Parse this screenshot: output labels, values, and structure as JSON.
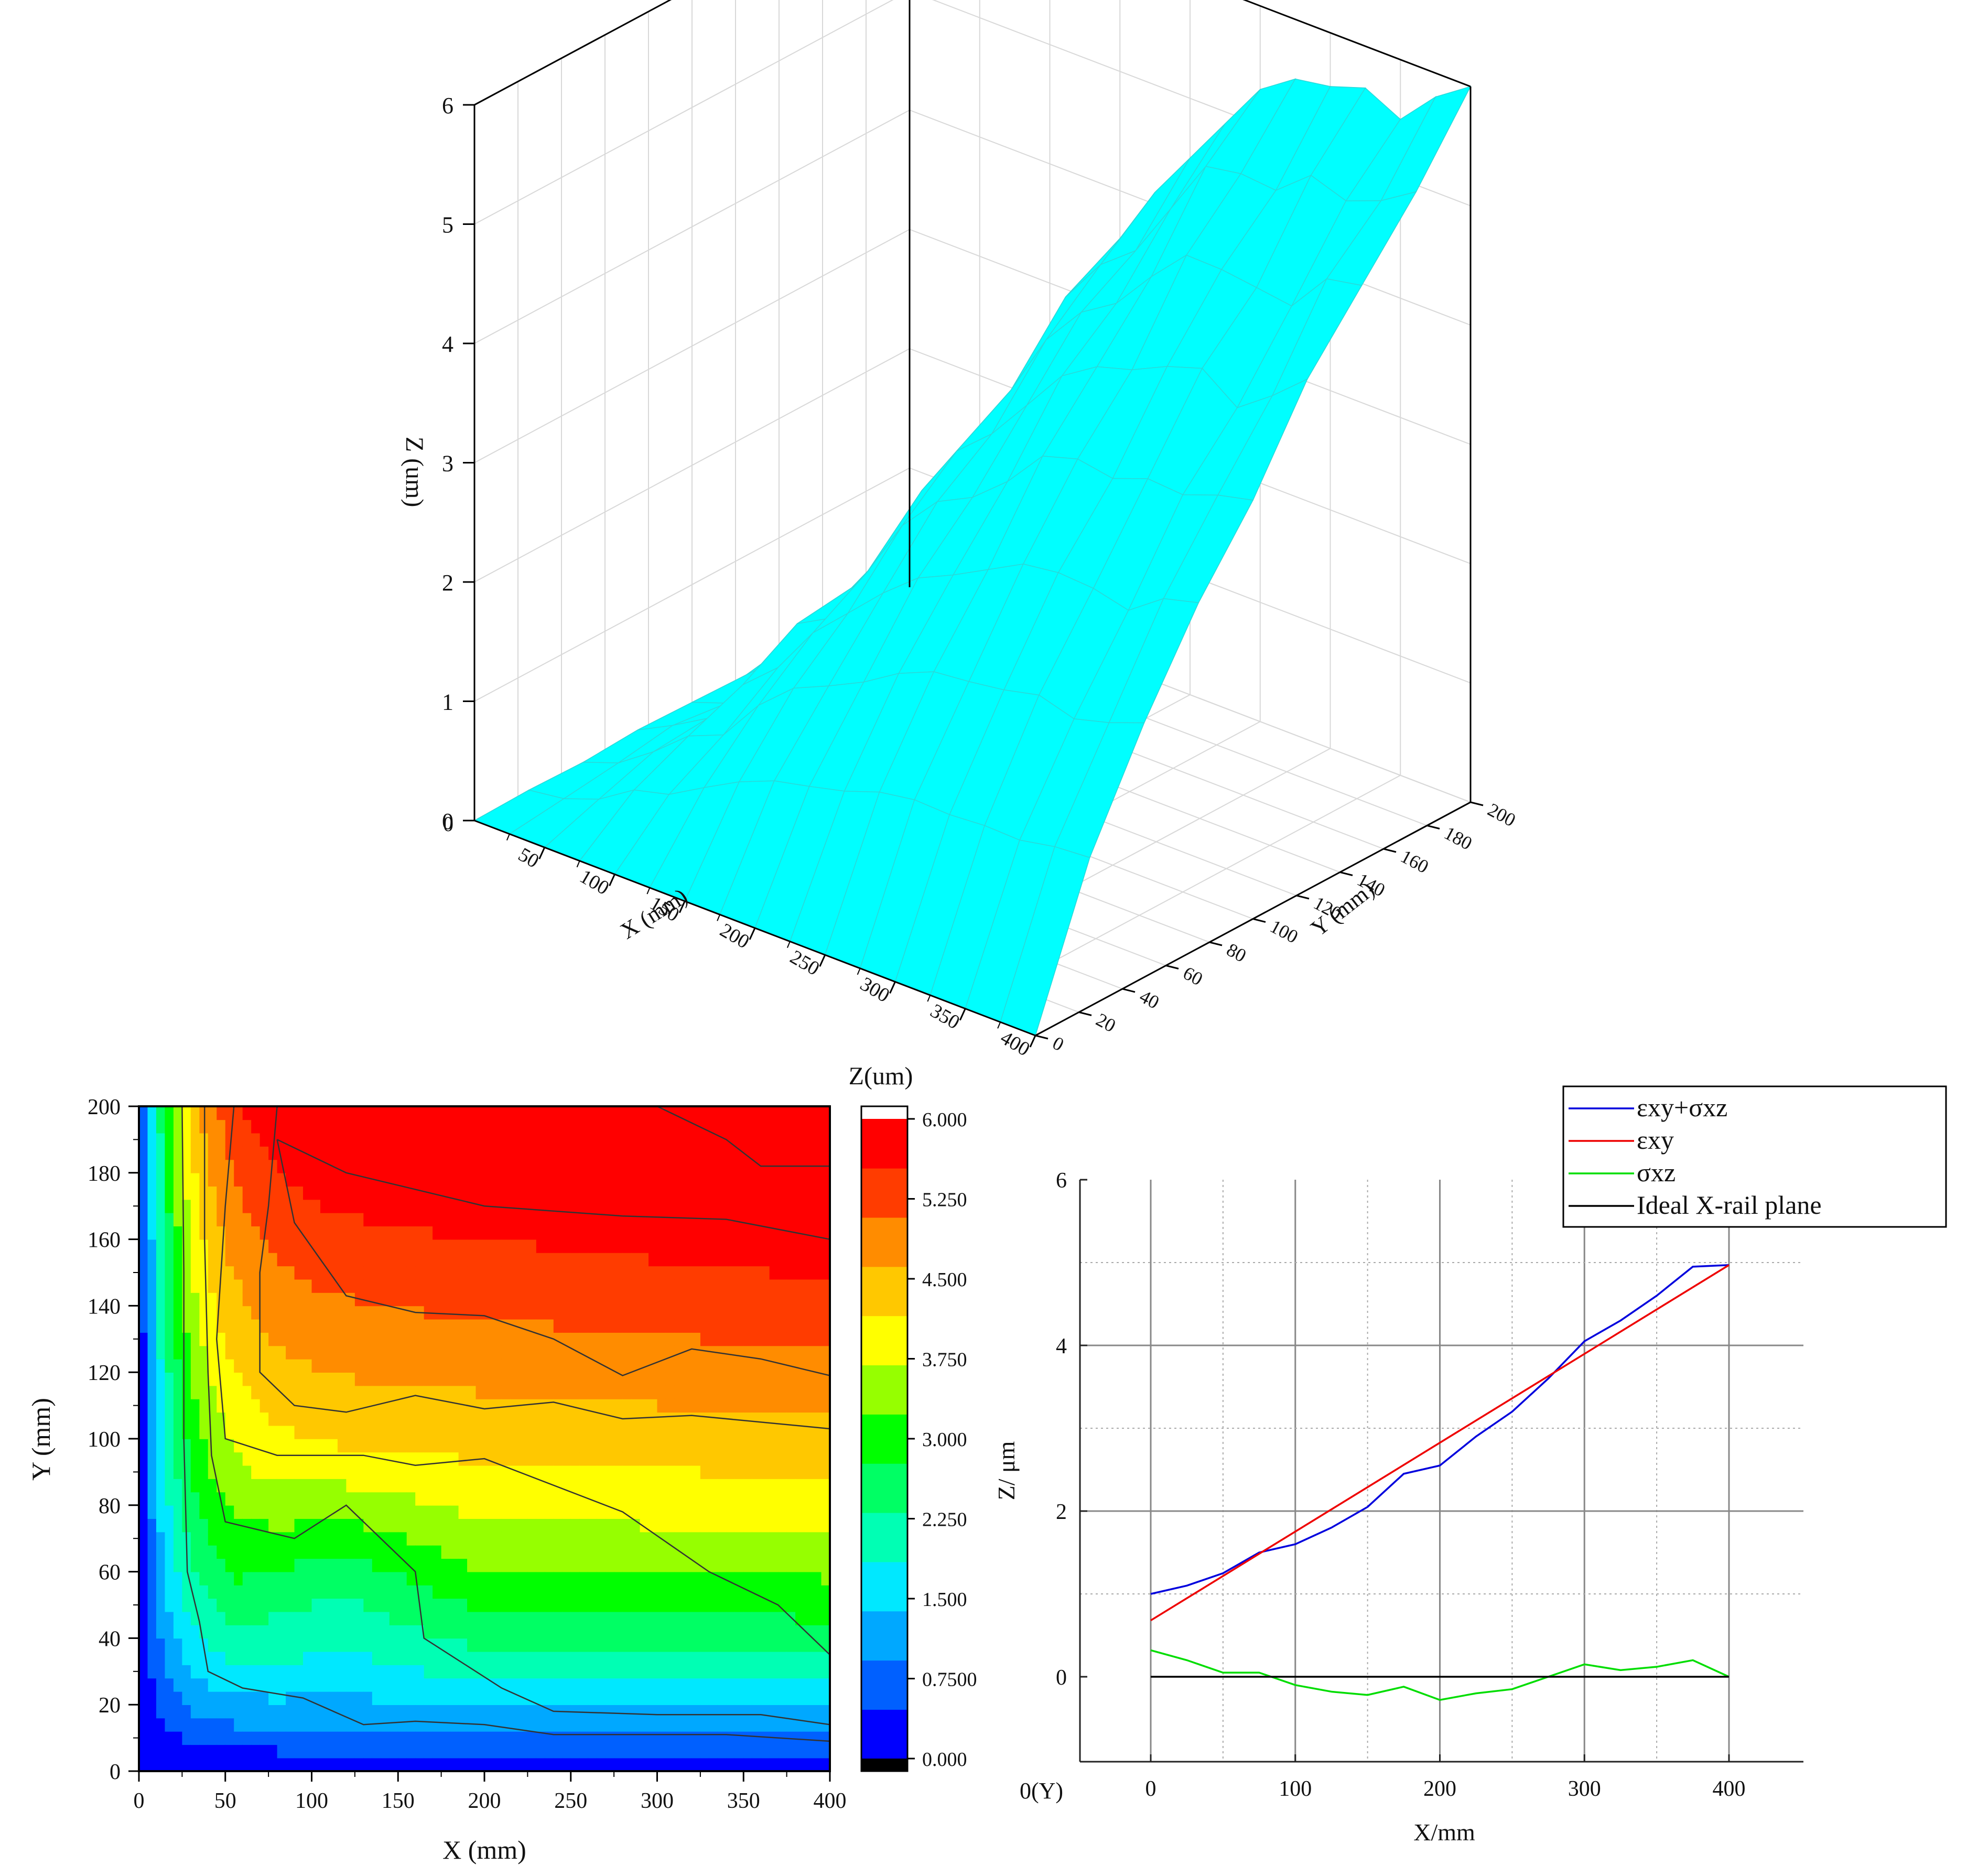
{
  "chart_data": [
    {
      "type": "surface3d",
      "zlabel": "Z (um)",
      "xlabel": "X (mm)",
      "ylabel": "Y (mm)",
      "xlim": [
        0,
        400
      ],
      "ylim": [
        0,
        200
      ],
      "zlim": [
        0,
        6
      ],
      "x_ticks": [
        "50",
        "100",
        "150",
        "200",
        "250",
        "300",
        "350",
        "400"
      ],
      "y_ticks": [
        "0",
        "20",
        "40",
        "60",
        "80",
        "100",
        "120",
        "140",
        "160",
        "180",
        "200"
      ],
      "z_ticks": [
        "0",
        "1",
        "2",
        "3",
        "4",
        "5",
        "6"
      ],
      "x_origin_label": "0",
      "surface_color": "#00ffff",
      "x_grid": [
        0,
        25,
        50,
        75,
        100,
        125,
        150,
        175,
        200,
        225,
        250,
        275,
        300,
        325,
        350,
        375,
        400
      ],
      "y_grid": [
        0,
        25,
        50,
        75,
        100,
        125,
        150,
        175,
        200
      ],
      "z_far_edge": [
        0.0,
        0.3,
        0.8,
        1.6,
        2.0,
        2.9,
        3.6,
        4.1,
        4.5,
        4.9,
        5.3,
        5.5,
        5.55,
        5.65,
        5.5,
        5.8,
        6.0
      ]
    },
    {
      "type": "contour",
      "xlabel": "X (mm)",
      "ylabel": "Y (mm)",
      "xlim": [
        0,
        400
      ],
      "ylim": [
        0,
        200
      ],
      "x_ticks": [
        "0",
        "50",
        "100",
        "150",
        "200",
        "250",
        "300",
        "350",
        "400"
      ],
      "y_ticks": [
        "0",
        "20",
        "40",
        "60",
        "80",
        "100",
        "120",
        "140",
        "160",
        "180",
        "200"
      ],
      "colorbar": {
        "title": "Z(um)",
        "range": [
          0,
          6
        ],
        "ticks": [
          "0.000",
          "0.7500",
          "1.500",
          "2.250",
          "3.000",
          "3.750",
          "4.500",
          "5.250",
          "6.000"
        ],
        "colors": [
          "#0000ff",
          "#0060ff",
          "#00a8ff",
          "#00e8ff",
          "#00ffb4",
          "#00ff64",
          "#00ff00",
          "#96ff00",
          "#ffff00",
          "#ffc800",
          "#ff8c00",
          "#ff3c00",
          "#ff0000"
        ]
      },
      "contour_lines": [
        {
          "level": 0.75,
          "points": [
            [
              0,
              0
            ],
            [
              0,
              0
            ]
          ]
        },
        {
          "level": 1.5,
          "points": [
            [
              25,
              200
            ],
            [
              26,
              150
            ],
            [
              26,
              100
            ],
            [
              28,
              60
            ],
            [
              35,
              45
            ],
            [
              40,
              30
            ],
            [
              60,
              25
            ],
            [
              95,
              22
            ],
            [
              130,
              14
            ],
            [
              160,
              15
            ],
            [
              200,
              14
            ],
            [
              240,
              11
            ],
            [
              300,
              11
            ],
            [
              340,
              11
            ],
            [
              400,
              9
            ]
          ]
        },
        {
          "level": 2.25,
          "points": [
            [
              38,
              200
            ],
            [
              38,
              160
            ],
            [
              40,
              120
            ],
            [
              42,
              95
            ],
            [
              50,
              75
            ],
            [
              90,
              70
            ],
            [
              120,
              80
            ],
            [
              160,
              60
            ],
            [
              165,
              40
            ],
            [
              210,
              25
            ],
            [
              240,
              18
            ],
            [
              300,
              17
            ],
            [
              340,
              17
            ],
            [
              360,
              17
            ],
            [
              400,
              14
            ]
          ]
        },
        {
          "level": 3.0,
          "points": [
            [
              55,
              200
            ],
            [
              50,
              170
            ],
            [
              45,
              130
            ],
            [
              50,
              100
            ],
            [
              80,
              95
            ],
            [
              130,
              95
            ],
            [
              160,
              92
            ],
            [
              200,
              94
            ],
            [
              280,
              78
            ],
            [
              330,
              60
            ],
            [
              370,
              50
            ],
            [
              400,
              35
            ]
          ]
        },
        {
          "level": 3.75,
          "points": [
            [
              80,
              200
            ],
            [
              75,
              170
            ],
            [
              70,
              150
            ],
            [
              70,
              120
            ],
            [
              90,
              110
            ],
            [
              120,
              108
            ],
            [
              160,
              113
            ],
            [
              200,
              109
            ],
            [
              240,
              111
            ],
            [
              280,
              106
            ],
            [
              320,
              107
            ],
            [
              400,
              103
            ]
          ]
        },
        {
          "level": 4.5,
          "points": [
            [
              80,
              190
            ],
            [
              90,
              165
            ],
            [
              120,
              143
            ],
            [
              160,
              138
            ],
            [
              200,
              137
            ],
            [
              240,
              130
            ],
            [
              280,
              119
            ],
            [
              320,
              127
            ],
            [
              360,
              124
            ],
            [
              400,
              119
            ]
          ]
        },
        {
          "level": 5.25,
          "points": [
            [
              80,
              190
            ],
            [
              120,
              180
            ],
            [
              200,
              170
            ],
            [
              280,
              167
            ],
            [
              340,
              166
            ],
            [
              400,
              160
            ]
          ]
        },
        {
          "level": 5.8,
          "points": [
            [
              300,
              200
            ],
            [
              340,
              190
            ],
            [
              360,
              182
            ],
            [
              400,
              182
            ]
          ]
        }
      ]
    },
    {
      "type": "line",
      "xlabel": "X/mm",
      "ylabel": "Z/ μm",
      "origin_label": "0(Y)",
      "xlim": [
        -70,
        450
      ],
      "ylim": [
        -1,
        6
      ],
      "x_ticks": [
        "0",
        "100",
        "200",
        "300",
        "400"
      ],
      "y_ticks": [
        "0",
        "2",
        "4",
        "6"
      ],
      "legend_position": "top-right",
      "series": [
        {
          "name": "εxy+σxz",
          "color": "#0000dd",
          "x": [
            0,
            25,
            50,
            75,
            100,
            125,
            150,
            175,
            200,
            225,
            250,
            275,
            300,
            325,
            350,
            375,
            400
          ],
          "y": [
            1.0,
            1.1,
            1.25,
            1.5,
            1.6,
            1.8,
            2.05,
            2.45,
            2.55,
            2.9,
            3.2,
            3.6,
            4.05,
            4.3,
            4.6,
            4.95,
            4.97
          ]
        },
        {
          "name": "εxy",
          "color": "#ee0000",
          "x": [
            0,
            400
          ],
          "y": [
            0.68,
            4.97
          ]
        },
        {
          "name": "σxz",
          "color": "#00dd00",
          "x": [
            0,
            25,
            50,
            75,
            100,
            125,
            150,
            175,
            200,
            225,
            250,
            275,
            300,
            325,
            350,
            375,
            400
          ],
          "y": [
            0.32,
            0.2,
            0.05,
            0.05,
            -0.1,
            -0.18,
            -0.22,
            -0.12,
            -0.28,
            -0.2,
            -0.15,
            0.0,
            0.15,
            0.08,
            0.12,
            0.2,
            0.0
          ]
        },
        {
          "name": "Ideal X-rail plane",
          "color": "#000000",
          "x": [
            0,
            400
          ],
          "y": [
            0,
            0
          ]
        }
      ]
    }
  ]
}
